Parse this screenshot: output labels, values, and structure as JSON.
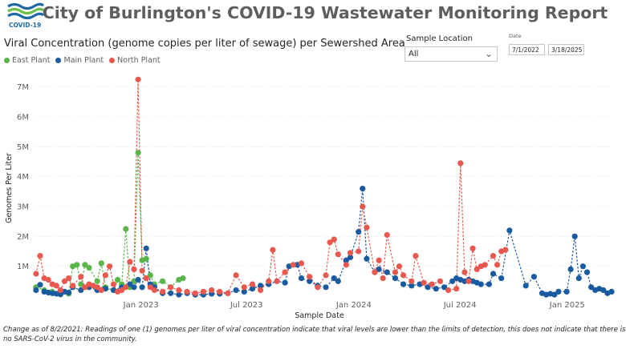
{
  "header": {
    "logo_label": "COVID-19",
    "title": "City of Burlington's COVID-19 Wastewater Monitoring Report"
  },
  "filters": {
    "location_label": "Sample Location",
    "location_value": "All",
    "date_label": "Date",
    "date_start": "7/1/2022",
    "date_end": "3/18/2025"
  },
  "footnote": "Change as of 8/2/2021: Readings of one (1) genomes per liter of viral concentration indicate that viral levels are lower than the limits of detection, this does not indicate that there is no SARS-CoV-2 virus in the community.",
  "colors": {
    "east": "#5ab54b",
    "main": "#1a5aa0",
    "north": "#e8584e",
    "logo_blue": "#1d6aa5",
    "logo_green": "#6dbf4b"
  },
  "chart_data": {
    "type": "scatter",
    "title": "Viral Concentration (genome copies per liter of sewage) per Sewershed Area",
    "xlabel": "Sample Date",
    "ylabel": "Genomes Per Liter",
    "xlim": [
      "2022-07-01",
      "2025-03-18"
    ],
    "ylim": [
      0,
      7500000
    ],
    "y_ticks": [
      1000000,
      2000000,
      3000000,
      4000000,
      5000000,
      6000000,
      7000000
    ],
    "y_tick_labels": [
      "1M",
      "2M",
      "3M",
      "4M",
      "5M",
      "6M",
      "7M"
    ],
    "x_ticks": [
      "2023-01-01",
      "2023-07-01",
      "2024-01-01",
      "2024-07-01",
      "2025-01-01"
    ],
    "x_tick_labels": [
      "Jan 2023",
      "Jul 2023",
      "Jan 2024",
      "Jul 2024",
      "Jan 2025"
    ],
    "legend_position": "top-left",
    "series": [
      {
        "name": "East Plant",
        "color": "#5ab54b",
        "points": [
          [
            "2022-07-05",
            300000
          ],
          [
            "2022-07-19",
            200000
          ],
          [
            "2022-08-02",
            150000
          ],
          [
            "2022-08-16",
            100000
          ],
          [
            "2022-08-30",
            80000
          ],
          [
            "2022-09-06",
            1000000
          ],
          [
            "2022-09-13",
            1050000
          ],
          [
            "2022-09-20",
            400000
          ],
          [
            "2022-09-27",
            1050000
          ],
          [
            "2022-10-04",
            950000
          ],
          [
            "2022-10-18",
            500000
          ],
          [
            "2022-10-25",
            1100000
          ],
          [
            "2022-11-01",
            300000
          ],
          [
            "2022-11-15",
            200000
          ],
          [
            "2022-11-22",
            550000
          ],
          [
            "2022-11-29",
            400000
          ],
          [
            "2022-12-06",
            2250000
          ],
          [
            "2022-12-13",
            300000
          ],
          [
            "2022-12-20",
            500000
          ],
          [
            "2022-12-27",
            4800000
          ],
          [
            "2023-01-03",
            1200000
          ],
          [
            "2023-01-10",
            1250000
          ],
          [
            "2023-01-17",
            700000
          ],
          [
            "2023-01-24",
            400000
          ],
          [
            "2023-02-07",
            500000
          ],
          [
            "2023-02-21",
            300000
          ],
          [
            "2023-03-07",
            550000
          ],
          [
            "2023-03-14",
            600000
          ]
        ]
      },
      {
        "name": "Main Plant",
        "color": "#1a5aa0",
        "points": [
          [
            "2022-07-05",
            200000
          ],
          [
            "2022-07-12",
            380000
          ],
          [
            "2022-07-19",
            150000
          ],
          [
            "2022-07-26",
            120000
          ],
          [
            "2022-08-02",
            100000
          ],
          [
            "2022-08-09",
            80000
          ],
          [
            "2022-08-16",
            60000
          ],
          [
            "2022-08-23",
            150000
          ],
          [
            "2022-08-30",
            120000
          ],
          [
            "2022-09-06",
            300000
          ],
          [
            "2022-09-20",
            200000
          ],
          [
            "2022-10-04",
            300000
          ],
          [
            "2022-10-18",
            200000
          ],
          [
            "2022-11-01",
            250000
          ],
          [
            "2022-11-15",
            200000
          ],
          [
            "2022-11-29",
            300000
          ],
          [
            "2022-12-13",
            400000
          ],
          [
            "2022-12-20",
            300000
          ],
          [
            "2022-12-27",
            550000
          ],
          [
            "2023-01-03",
            300000
          ],
          [
            "2023-01-10",
            1600000
          ],
          [
            "2023-01-17",
            400000
          ],
          [
            "2023-01-24",
            300000
          ],
          [
            "2023-02-07",
            100000
          ],
          [
            "2023-02-21",
            100000
          ],
          [
            "2023-03-07",
            50000
          ],
          [
            "2023-03-21",
            100000
          ],
          [
            "2023-04-04",
            50000
          ],
          [
            "2023-04-18",
            50000
          ],
          [
            "2023-05-02",
            80000
          ],
          [
            "2023-05-16",
            80000
          ],
          [
            "2023-05-30",
            100000
          ],
          [
            "2023-06-13",
            200000
          ],
          [
            "2023-06-27",
            150000
          ],
          [
            "2023-07-11",
            250000
          ],
          [
            "2023-07-25",
            350000
          ],
          [
            "2023-08-08",
            400000
          ],
          [
            "2023-08-22",
            500000
          ],
          [
            "2023-09-05",
            450000
          ],
          [
            "2023-09-12",
            1000000
          ],
          [
            "2023-09-26",
            1050000
          ],
          [
            "2023-10-03",
            600000
          ],
          [
            "2023-10-17",
            500000
          ],
          [
            "2023-10-31",
            350000
          ],
          [
            "2023-11-14",
            300000
          ],
          [
            "2023-11-28",
            600000
          ],
          [
            "2023-12-05",
            500000
          ],
          [
            "2023-12-19",
            1200000
          ],
          [
            "2023-12-26",
            1300000
          ],
          [
            "2024-01-09",
            2150000
          ],
          [
            "2024-01-16",
            3600000
          ],
          [
            "2024-01-23",
            1250000
          ],
          [
            "2024-02-06",
            800000
          ],
          [
            "2024-02-13",
            900000
          ],
          [
            "2024-02-27",
            800000
          ],
          [
            "2024-03-12",
            600000
          ],
          [
            "2024-03-26",
            400000
          ],
          [
            "2024-04-09",
            350000
          ],
          [
            "2024-04-23",
            400000
          ],
          [
            "2024-05-07",
            300000
          ],
          [
            "2024-05-21",
            250000
          ],
          [
            "2024-06-04",
            300000
          ],
          [
            "2024-06-18",
            500000
          ],
          [
            "2024-06-25",
            600000
          ],
          [
            "2024-07-02",
            550000
          ],
          [
            "2024-07-09",
            500000
          ],
          [
            "2024-07-16",
            550000
          ],
          [
            "2024-07-23",
            500000
          ],
          [
            "2024-07-30",
            450000
          ],
          [
            "2024-08-06",
            400000
          ],
          [
            "2024-08-20",
            400000
          ],
          [
            "2024-08-27",
            750000
          ],
          [
            "2024-09-10",
            600000
          ],
          [
            "2024-09-24",
            2200000
          ],
          [
            "2024-10-22",
            350000
          ],
          [
            "2024-11-05",
            650000
          ],
          [
            "2024-11-19",
            100000
          ],
          [
            "2024-11-26",
            50000
          ],
          [
            "2024-12-03",
            80000
          ],
          [
            "2024-12-10",
            50000
          ],
          [
            "2024-12-17",
            150000
          ],
          [
            "2024-12-31",
            150000
          ],
          [
            "2025-01-07",
            900000
          ],
          [
            "2025-01-14",
            2000000
          ],
          [
            "2025-01-21",
            600000
          ],
          [
            "2025-01-28",
            1000000
          ],
          [
            "2025-02-04",
            800000
          ],
          [
            "2025-02-11",
            300000
          ],
          [
            "2025-02-18",
            200000
          ],
          [
            "2025-02-25",
            250000
          ],
          [
            "2025-03-04",
            200000
          ],
          [
            "2025-03-11",
            100000
          ],
          [
            "2025-03-18",
            150000
          ]
        ]
      },
      {
        "name": "North Plant",
        "color": "#e8584e",
        "points": [
          [
            "2022-07-05",
            750000
          ],
          [
            "2022-07-12",
            1350000
          ],
          [
            "2022-07-19",
            600000
          ],
          [
            "2022-07-26",
            550000
          ],
          [
            "2022-08-02",
            400000
          ],
          [
            "2022-08-09",
            350000
          ],
          [
            "2022-08-16",
            200000
          ],
          [
            "2022-08-23",
            500000
          ],
          [
            "2022-08-30",
            600000
          ],
          [
            "2022-09-06",
            350000
          ],
          [
            "2022-09-20",
            650000
          ],
          [
            "2022-09-27",
            300000
          ],
          [
            "2022-10-04",
            400000
          ],
          [
            "2022-10-11",
            350000
          ],
          [
            "2022-10-18",
            300000
          ],
          [
            "2022-10-25",
            200000
          ],
          [
            "2022-11-01",
            700000
          ],
          [
            "2022-11-08",
            1000000
          ],
          [
            "2022-11-15",
            400000
          ],
          [
            "2022-11-22",
            150000
          ],
          [
            "2022-11-29",
            200000
          ],
          [
            "2022-12-06",
            300000
          ],
          [
            "2022-12-13",
            1150000
          ],
          [
            "2022-12-20",
            900000
          ],
          [
            "2022-12-27",
            7250000
          ],
          [
            "2023-01-03",
            850000
          ],
          [
            "2023-01-10",
            600000
          ],
          [
            "2023-01-17",
            300000
          ],
          [
            "2023-01-24",
            200000
          ],
          [
            "2023-02-07",
            150000
          ],
          [
            "2023-02-21",
            300000
          ],
          [
            "2023-03-07",
            200000
          ],
          [
            "2023-03-21",
            150000
          ],
          [
            "2023-04-04",
            100000
          ],
          [
            "2023-04-18",
            150000
          ],
          [
            "2023-05-02",
            200000
          ],
          [
            "2023-05-16",
            150000
          ],
          [
            "2023-05-30",
            100000
          ],
          [
            "2023-06-13",
            700000
          ],
          [
            "2023-06-27",
            300000
          ],
          [
            "2023-07-11",
            400000
          ],
          [
            "2023-07-25",
            200000
          ],
          [
            "2023-08-08",
            500000
          ],
          [
            "2023-08-15",
            1550000
          ],
          [
            "2023-08-22",
            500000
          ],
          [
            "2023-09-05",
            800000
          ],
          [
            "2023-09-19",
            1050000
          ],
          [
            "2023-10-03",
            1100000
          ],
          [
            "2023-10-17",
            650000
          ],
          [
            "2023-10-31",
            300000
          ],
          [
            "2023-11-14",
            700000
          ],
          [
            "2023-11-21",
            1800000
          ],
          [
            "2023-11-28",
            1900000
          ],
          [
            "2023-12-05",
            1400000
          ],
          [
            "2023-12-19",
            1050000
          ],
          [
            "2023-12-26",
            1450000
          ],
          [
            "2024-01-09",
            1500000
          ],
          [
            "2024-01-16",
            3000000
          ],
          [
            "2024-01-23",
            2300000
          ],
          [
            "2024-02-06",
            800000
          ],
          [
            "2024-02-13",
            1200000
          ],
          [
            "2024-02-20",
            600000
          ],
          [
            "2024-02-27",
            2050000
          ],
          [
            "2024-03-12",
            800000
          ],
          [
            "2024-03-19",
            1000000
          ],
          [
            "2024-03-26",
            700000
          ],
          [
            "2024-04-09",
            500000
          ],
          [
            "2024-04-16",
            1350000
          ],
          [
            "2024-04-30",
            450000
          ],
          [
            "2024-05-14",
            400000
          ],
          [
            "2024-05-28",
            500000
          ],
          [
            "2024-06-11",
            200000
          ],
          [
            "2024-06-25",
            250000
          ],
          [
            "2024-07-02",
            4450000
          ],
          [
            "2024-07-09",
            800000
          ],
          [
            "2024-07-16",
            500000
          ],
          [
            "2024-07-23",
            1600000
          ],
          [
            "2024-07-30",
            900000
          ],
          [
            "2024-08-06",
            1000000
          ],
          [
            "2024-08-13",
            1050000
          ],
          [
            "2024-08-27",
            1350000
          ],
          [
            "2024-09-03",
            1050000
          ],
          [
            "2024-09-10",
            1500000
          ],
          [
            "2024-09-17",
            1550000
          ]
        ]
      }
    ]
  }
}
